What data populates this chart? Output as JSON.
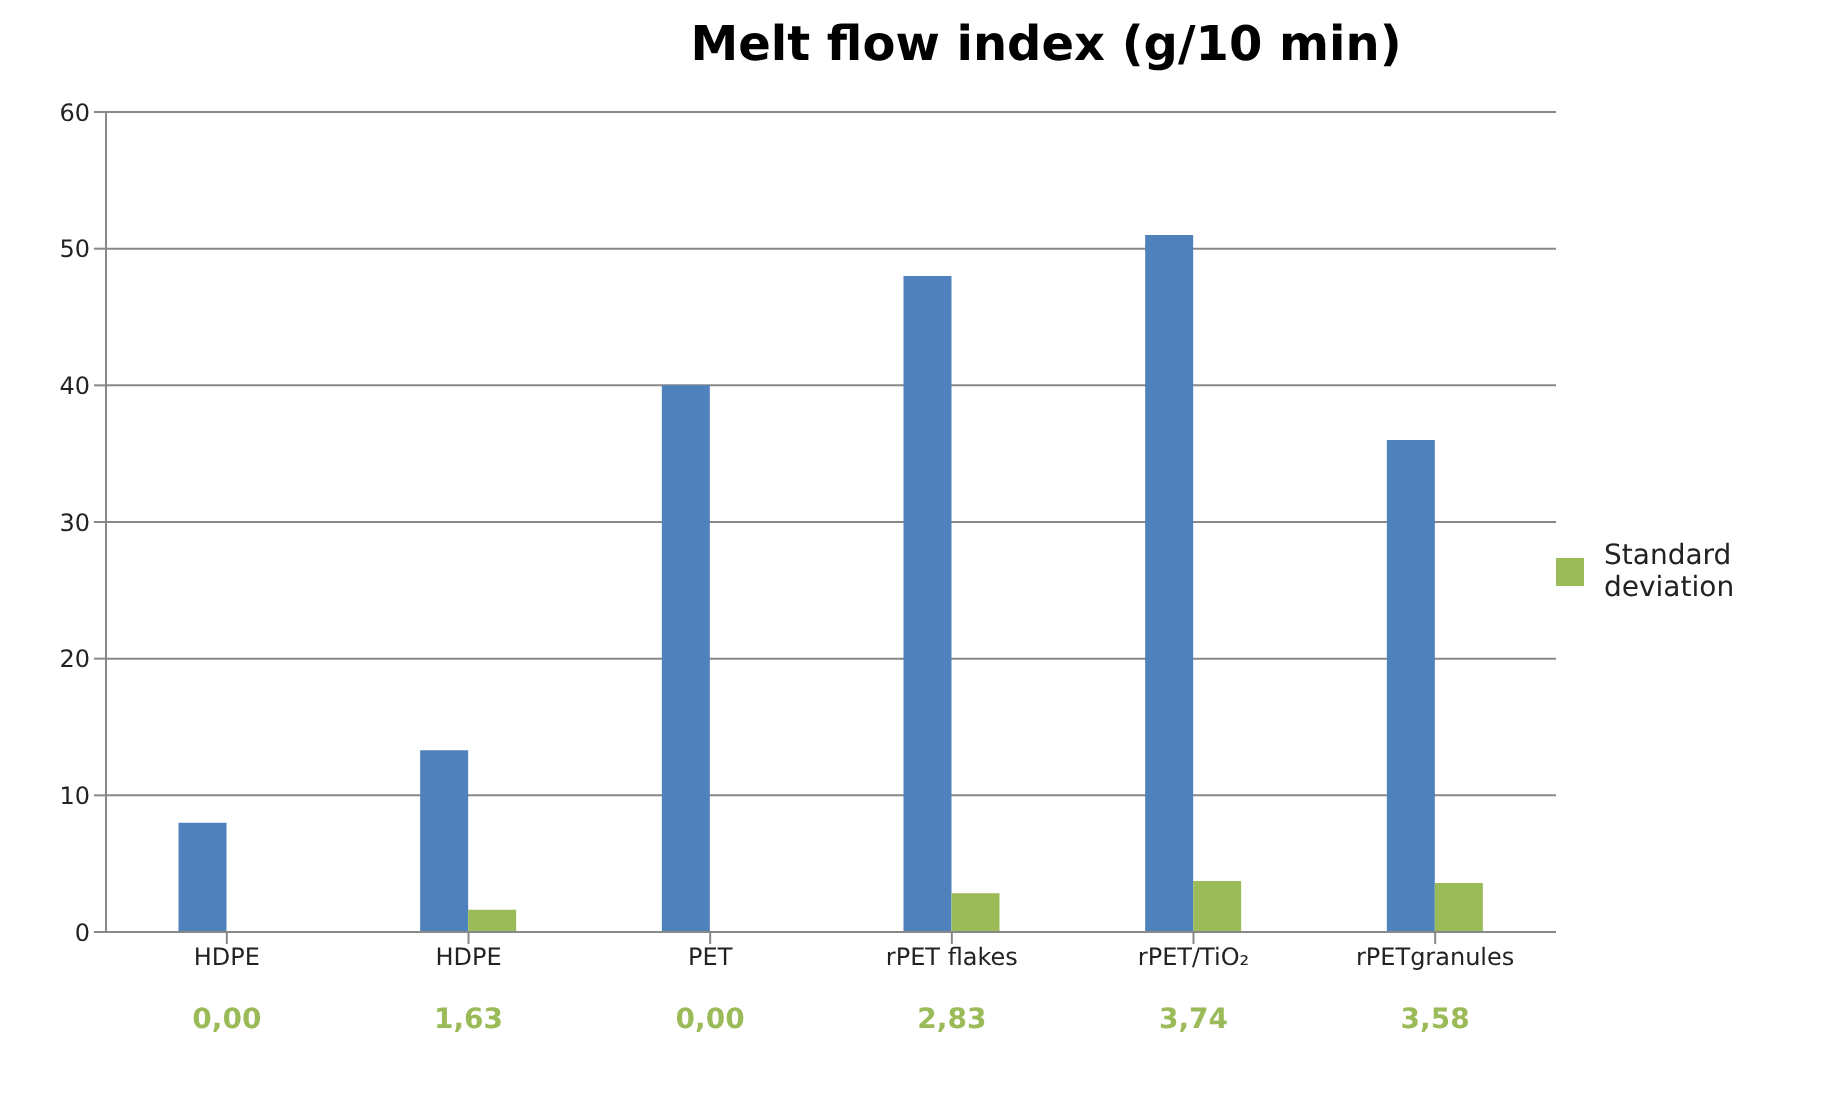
{
  "chart_data": {
    "type": "bar",
    "title": "Melt flow index (g/10 min)",
    "categories": [
      "HDPE",
      "HDPE",
      "PET",
      "rPET flakes",
      "rPET/TiO₂",
      "rPETgranules"
    ],
    "series": [
      {
        "color": "#4f81bd",
        "values": [
          8,
          13.3,
          40,
          48,
          51,
          36
        ]
      },
      {
        "name": "Standard deviation",
        "color": "#9bbb59",
        "values": [
          0,
          1.63,
          0,
          2.83,
          3.74,
          3.58
        ],
        "value_labels": [
          "0,00",
          "1,63",
          "0,00",
          "2,83",
          "3,74",
          "3,58"
        ]
      }
    ],
    "ylim": [
      0,
      60
    ],
    "yticks": [
      0,
      10,
      20,
      30,
      40,
      50,
      60
    ],
    "grid": "y",
    "legend": "right"
  }
}
